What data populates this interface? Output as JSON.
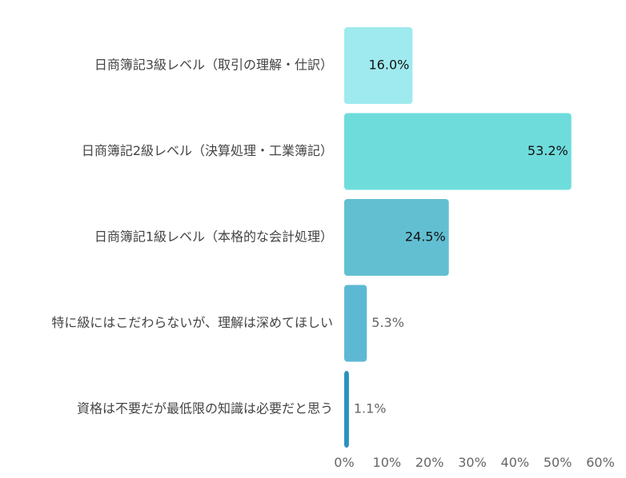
{
  "chart_data": {
    "type": "bar",
    "orientation": "horizontal",
    "categories": [
      "日商簿記3級レベル（取引の理解・仕訳）",
      "日商簿記2級レベル（決算処理・工業簿記）",
      "日商簿記1級レベル（本格的な会計処理）",
      "特に級にはこだわらないが、理解は深めてほしい",
      "資格は不要だが最低限の知識は必要だと思う"
    ],
    "values": [
      16.0,
      53.2,
      24.5,
      5.3,
      1.1
    ],
    "data_labels": [
      "16.0%",
      "53.2%",
      "24.5%",
      "5.3%",
      "1.1%"
    ],
    "bar_colors": [
      "#9feaee",
      "#6fdcdc",
      "#62bfd2",
      "#5db8d4",
      "#2a92bf"
    ],
    "label_inside": [
      true,
      true,
      true,
      false,
      false
    ],
    "xlim": [
      0,
      60
    ],
    "xticks": [
      0,
      10,
      20,
      30,
      40,
      50,
      60
    ],
    "xtick_labels": [
      "0%",
      "10%",
      "20%",
      "30%",
      "40%",
      "50%",
      "60%"
    ],
    "grid": false,
    "legend": "none"
  }
}
